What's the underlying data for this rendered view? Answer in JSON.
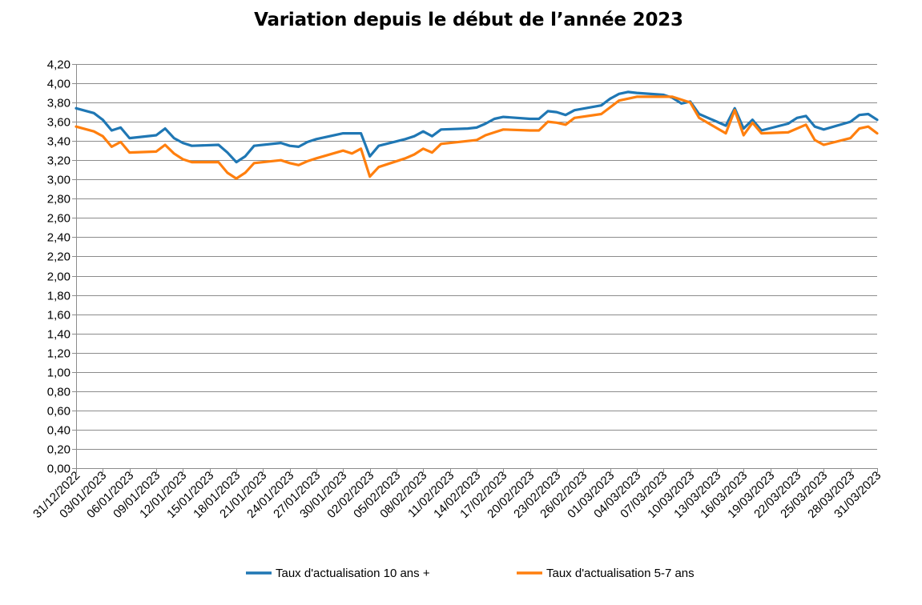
{
  "chart_data": {
    "type": "line",
    "title": "Variation depuis le début de l’année 2023",
    "xlabel": "",
    "ylabel": "",
    "ylim": [
      0,
      4.2
    ],
    "y_tick_step": 0.2,
    "y_tick_labels": [
      "0,00",
      "0,20",
      "0,40",
      "0,60",
      "0,80",
      "1,00",
      "1,20",
      "1,40",
      "1,60",
      "1,80",
      "2,00",
      "2,20",
      "2,40",
      "2,60",
      "2,80",
      "3,00",
      "3,20",
      "3,40",
      "3,60",
      "3,80",
      "4,00",
      "4,20"
    ],
    "x_start": "2022-12-31",
    "x_end": "2023-03-31",
    "x_tick_labels": [
      "31/12/2022",
      "03/01/2023",
      "06/01/2023",
      "09/01/2023",
      "12/01/2023",
      "15/01/2023",
      "18/01/2023",
      "21/01/2023",
      "24/01/2023",
      "27/01/2023",
      "30/01/2023",
      "02/02/2023",
      "05/02/2023",
      "08/02/2023",
      "11/02/2023",
      "14/02/2023",
      "17/02/2023",
      "20/02/2023",
      "23/02/2023",
      "26/02/2023",
      "01/03/2023",
      "04/03/2023",
      "07/03/2023",
      "10/03/2023",
      "13/03/2023",
      "16/03/2023",
      "19/03/2023",
      "22/03/2023",
      "25/03/2023",
      "28/03/2023",
      "31/03/2023"
    ],
    "grid": true,
    "legend_position": "bottom",
    "series": [
      {
        "name": "Taux d'actualisation 10 ans +",
        "color": "#1f77b4",
        "points": [
          [
            "2022-12-31",
            3.74
          ],
          [
            "2023-01-02",
            3.69
          ],
          [
            "2023-01-03",
            3.62
          ],
          [
            "2023-01-04",
            3.51
          ],
          [
            "2023-01-05",
            3.54
          ],
          [
            "2023-01-06",
            3.43
          ],
          [
            "2023-01-09",
            3.46
          ],
          [
            "2023-01-10",
            3.53
          ],
          [
            "2023-01-11",
            3.43
          ],
          [
            "2023-01-12",
            3.38
          ],
          [
            "2023-01-13",
            3.35
          ],
          [
            "2023-01-16",
            3.36
          ],
          [
            "2023-01-17",
            3.28
          ],
          [
            "2023-01-18",
            3.18
          ],
          [
            "2023-01-19",
            3.24
          ],
          [
            "2023-01-20",
            3.35
          ],
          [
            "2023-01-23",
            3.38
          ],
          [
            "2023-01-24",
            3.35
          ],
          [
            "2023-01-25",
            3.34
          ],
          [
            "2023-01-26",
            3.39
          ],
          [
            "2023-01-27",
            3.42
          ],
          [
            "2023-01-30",
            3.48
          ],
          [
            "2023-01-31",
            3.48
          ],
          [
            "2023-02-01",
            3.48
          ],
          [
            "2023-02-02",
            3.24
          ],
          [
            "2023-02-03",
            3.35
          ],
          [
            "2023-02-06",
            3.42
          ],
          [
            "2023-02-07",
            3.45
          ],
          [
            "2023-02-08",
            3.5
          ],
          [
            "2023-02-09",
            3.45
          ],
          [
            "2023-02-10",
            3.52
          ],
          [
            "2023-02-13",
            3.53
          ],
          [
            "2023-02-14",
            3.54
          ],
          [
            "2023-02-15",
            3.58
          ],
          [
            "2023-02-16",
            3.63
          ],
          [
            "2023-02-17",
            3.65
          ],
          [
            "2023-02-20",
            3.63
          ],
          [
            "2023-02-21",
            3.63
          ],
          [
            "2023-02-22",
            3.71
          ],
          [
            "2023-02-23",
            3.7
          ],
          [
            "2023-02-24",
            3.67
          ],
          [
            "2023-02-25",
            3.72
          ],
          [
            "2023-02-28",
            3.77
          ],
          [
            "2023-03-01",
            3.84
          ],
          [
            "2023-03-02",
            3.89
          ],
          [
            "2023-03-03",
            3.91
          ],
          [
            "2023-03-04",
            3.9
          ],
          [
            "2023-03-07",
            3.88
          ],
          [
            "2023-03-08",
            3.85
          ],
          [
            "2023-03-09",
            3.79
          ],
          [
            "2023-03-10",
            3.81
          ],
          [
            "2023-03-11",
            3.68
          ],
          [
            "2023-03-14",
            3.56
          ],
          [
            "2023-03-15",
            3.74
          ],
          [
            "2023-03-16",
            3.53
          ],
          [
            "2023-03-17",
            3.62
          ],
          [
            "2023-03-18",
            3.51
          ],
          [
            "2023-03-21",
            3.58
          ],
          [
            "2023-03-22",
            3.64
          ],
          [
            "2023-03-23",
            3.66
          ],
          [
            "2023-03-24",
            3.55
          ],
          [
            "2023-03-25",
            3.52
          ],
          [
            "2023-03-28",
            3.6
          ],
          [
            "2023-03-29",
            3.67
          ],
          [
            "2023-03-30",
            3.68
          ],
          [
            "2023-03-31",
            3.62
          ]
        ]
      },
      {
        "name": "Taux d'actualisation 5-7 ans",
        "color": "#ff7f0e",
        "points": [
          [
            "2022-12-31",
            3.55
          ],
          [
            "2023-01-02",
            3.5
          ],
          [
            "2023-01-03",
            3.45
          ],
          [
            "2023-01-04",
            3.34
          ],
          [
            "2023-01-05",
            3.39
          ],
          [
            "2023-01-06",
            3.28
          ],
          [
            "2023-01-09",
            3.29
          ],
          [
            "2023-01-10",
            3.36
          ],
          [
            "2023-01-11",
            3.27
          ],
          [
            "2023-01-12",
            3.21
          ],
          [
            "2023-01-13",
            3.18
          ],
          [
            "2023-01-16",
            3.18
          ],
          [
            "2023-01-17",
            3.07
          ],
          [
            "2023-01-18",
            3.01
          ],
          [
            "2023-01-19",
            3.07
          ],
          [
            "2023-01-20",
            3.17
          ],
          [
            "2023-01-23",
            3.2
          ],
          [
            "2023-01-24",
            3.17
          ],
          [
            "2023-01-25",
            3.15
          ],
          [
            "2023-01-26",
            3.19
          ],
          [
            "2023-01-27",
            3.22
          ],
          [
            "2023-01-30",
            3.3
          ],
          [
            "2023-01-31",
            3.27
          ],
          [
            "2023-02-01",
            3.32
          ],
          [
            "2023-02-02",
            3.03
          ],
          [
            "2023-02-03",
            3.13
          ],
          [
            "2023-02-06",
            3.22
          ],
          [
            "2023-02-07",
            3.26
          ],
          [
            "2023-02-08",
            3.32
          ],
          [
            "2023-02-09",
            3.28
          ],
          [
            "2023-02-10",
            3.37
          ],
          [
            "2023-02-13",
            3.4
          ],
          [
            "2023-02-14",
            3.41
          ],
          [
            "2023-02-15",
            3.46
          ],
          [
            "2023-02-16",
            3.49
          ],
          [
            "2023-02-17",
            3.52
          ],
          [
            "2023-02-20",
            3.51
          ],
          [
            "2023-02-21",
            3.51
          ],
          [
            "2023-02-22",
            3.6
          ],
          [
            "2023-02-23",
            3.59
          ],
          [
            "2023-02-24",
            3.57
          ],
          [
            "2023-02-25",
            3.64
          ],
          [
            "2023-02-28",
            3.68
          ],
          [
            "2023-03-01",
            3.75
          ],
          [
            "2023-03-02",
            3.82
          ],
          [
            "2023-03-03",
            3.84
          ],
          [
            "2023-03-04",
            3.86
          ],
          [
            "2023-03-08",
            3.86
          ],
          [
            "2023-03-10",
            3.8
          ],
          [
            "2023-03-11",
            3.64
          ],
          [
            "2023-03-14",
            3.48
          ],
          [
            "2023-03-15",
            3.72
          ],
          [
            "2023-03-16",
            3.46
          ],
          [
            "2023-03-17",
            3.59
          ],
          [
            "2023-03-18",
            3.48
          ],
          [
            "2023-03-21",
            3.49
          ],
          [
            "2023-03-23",
            3.57
          ],
          [
            "2023-03-24",
            3.41
          ],
          [
            "2023-03-25",
            3.36
          ],
          [
            "2023-03-28",
            3.43
          ],
          [
            "2023-03-29",
            3.53
          ],
          [
            "2023-03-30",
            3.55
          ],
          [
            "2023-03-31",
            3.48
          ]
        ]
      }
    ]
  }
}
